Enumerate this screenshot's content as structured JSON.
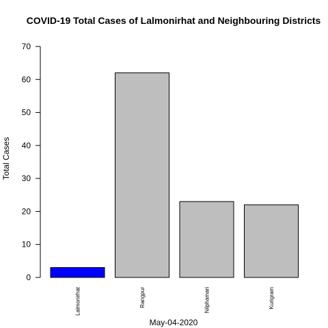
{
  "chart_data": {
    "type": "bar",
    "title": "COVID-19 Total Cases of Lalmonirhat and Neighbouring Districts",
    "xlabel": "May-04-2020",
    "ylabel": "Total Cases",
    "categories": [
      "Lalmonirhat",
      "Rangpur",
      "Nilphamari",
      "Kurigram"
    ],
    "values": [
      3,
      62,
      23,
      22
    ],
    "colors": [
      "#0000ff",
      "#bebebe",
      "#bebebe",
      "#bebebe"
    ],
    "ylim": [
      0,
      70
    ],
    "yticks": [
      "0",
      "10",
      "20",
      "30",
      "40",
      "50",
      "60",
      "70"
    ],
    "grid": false,
    "legend": "none"
  }
}
